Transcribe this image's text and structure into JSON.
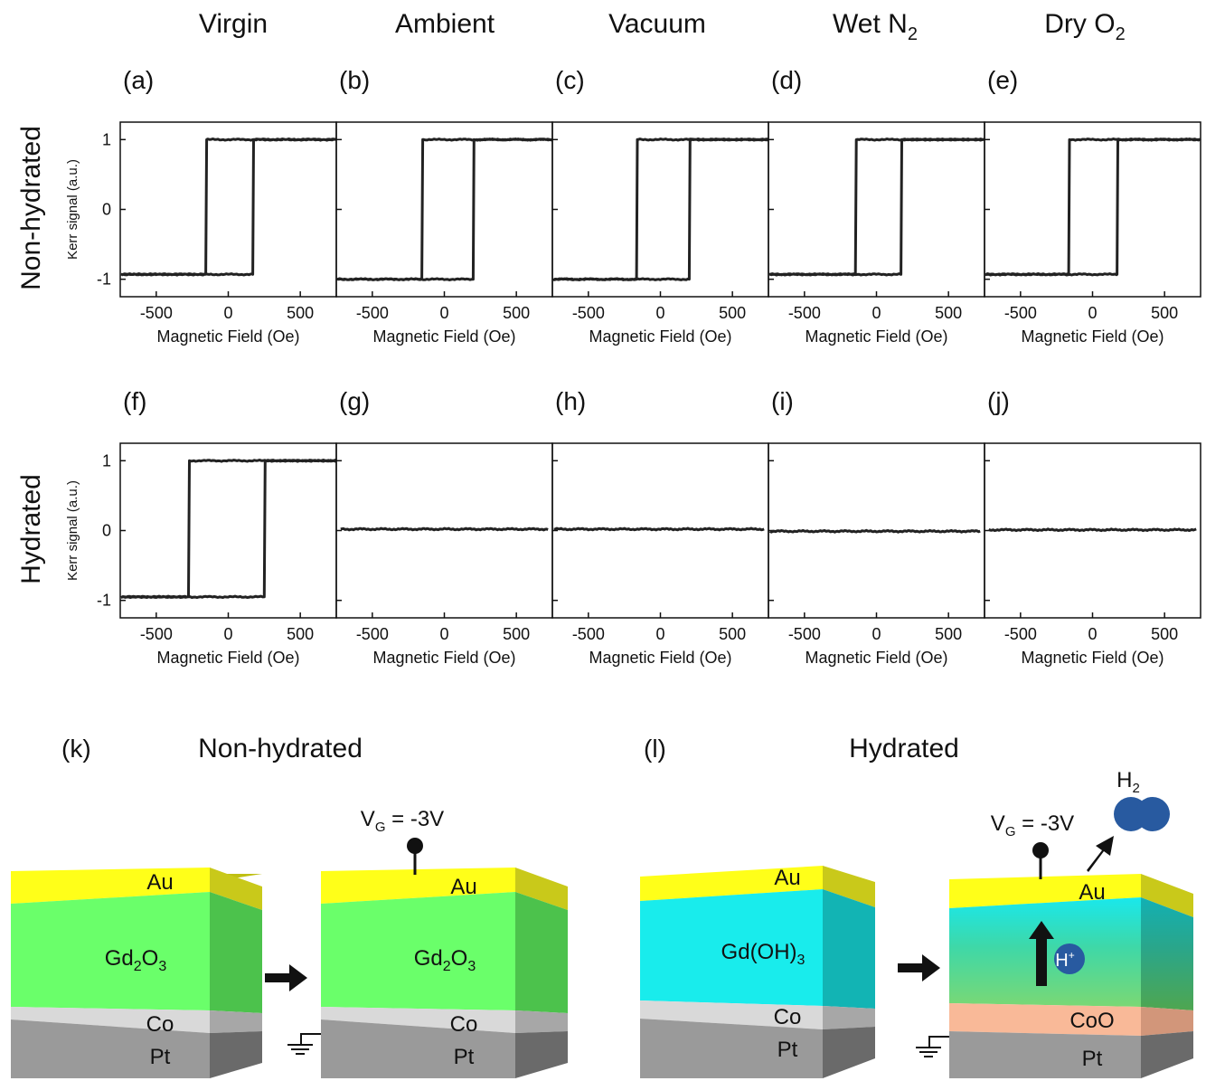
{
  "columns": [
    {
      "title": "Virgin",
      "sub": ""
    },
    {
      "title": "Ambient",
      "sub": ""
    },
    {
      "title": "Vacuum",
      "sub": ""
    },
    {
      "title": "Wet N",
      "sub": "2"
    },
    {
      "title": "Dry O",
      "sub": "2"
    }
  ],
  "rows": [
    {
      "label": "Non-hydrated",
      "panels": [
        "(a)",
        "(b)",
        "(c)",
        "(d)",
        "(e)"
      ]
    },
    {
      "label": "Hydrated",
      "panels": [
        "(f)",
        "(g)",
        "(h)",
        "(i)",
        "(j)"
      ]
    }
  ],
  "axes": {
    "xlabel": "Magnetic Field (Oe)",
    "ylabel": "Kerr signal (a.u.)",
    "xticks": [
      "-500",
      "0",
      "500"
    ],
    "yticks": [
      "1",
      "0",
      "-1"
    ]
  },
  "chart_data": [
    {
      "panel": "(a)",
      "type": "line",
      "xlim": [
        -750,
        750
      ],
      "ylim": [
        -1.25,
        1.25
      ],
      "coercive_field_oe": [
        -150,
        170
      ],
      "saturation": [
        -0.93,
        1.0
      ],
      "xlabel": "Magnetic Field (Oe)",
      "ylabel": "Kerr signal (a.u.)"
    },
    {
      "panel": "(b)",
      "type": "line",
      "xlim": [
        -750,
        750
      ],
      "ylim": [
        -1.25,
        1.25
      ],
      "coercive_field_oe": [
        -150,
        200
      ],
      "saturation": [
        -1.0,
        1.0
      ],
      "xlabel": "Magnetic Field (Oe)"
    },
    {
      "panel": "(c)",
      "type": "line",
      "xlim": [
        -750,
        750
      ],
      "ylim": [
        -1.25,
        1.25
      ],
      "coercive_field_oe": [
        -160,
        200
      ],
      "saturation": [
        -1.0,
        1.0
      ],
      "xlabel": "Magnetic Field (Oe)"
    },
    {
      "panel": "(d)",
      "type": "line",
      "xlim": [
        -750,
        750
      ],
      "ylim": [
        -1.25,
        1.25
      ],
      "coercive_field_oe": [
        -140,
        170
      ],
      "saturation": [
        -0.93,
        1.0
      ],
      "xlabel": "Magnetic Field (Oe)"
    },
    {
      "panel": "(e)",
      "type": "line",
      "xlim": [
        -750,
        750
      ],
      "ylim": [
        -1.25,
        1.25
      ],
      "coercive_field_oe": [
        -160,
        170
      ],
      "saturation": [
        -0.93,
        1.0
      ],
      "xlabel": "Magnetic Field (Oe)"
    },
    {
      "panel": "(f)",
      "type": "line",
      "xlim": [
        -750,
        750
      ],
      "ylim": [
        -1.25,
        1.25
      ],
      "coercive_field_oe": [
        -270,
        250
      ],
      "saturation": [
        -0.95,
        1.0
      ],
      "xlabel": "Magnetic Field (Oe)",
      "ylabel": "Kerr signal (a.u.)"
    },
    {
      "panel": "(g)",
      "type": "line",
      "xlim": [
        -750,
        750
      ],
      "ylim": [
        -1.25,
        1.25
      ],
      "x": [
        -720,
        720
      ],
      "flat_value": 0.02,
      "xlabel": "Magnetic Field (Oe)"
    },
    {
      "panel": "(h)",
      "type": "line",
      "xlim": [
        -750,
        750
      ],
      "ylim": [
        -1.25,
        1.25
      ],
      "x": [
        -740,
        720
      ],
      "flat_value": 0.02,
      "xlabel": "Magnetic Field (Oe)"
    },
    {
      "panel": "(i)",
      "type": "line",
      "xlim": [
        -750,
        750
      ],
      "ylim": [
        -1.25,
        1.25
      ],
      "x": [
        -740,
        720
      ],
      "flat_value": -0.01,
      "xlabel": "Magnetic Field (Oe)"
    },
    {
      "panel": "(j)",
      "type": "line",
      "xlim": [
        -750,
        750
      ],
      "ylim": [
        -1.25,
        1.25
      ],
      "x": [
        -720,
        720
      ],
      "flat_value": 0.01,
      "xlabel": "Magnetic Field (Oe)"
    }
  ],
  "schemes": {
    "k": {
      "letter": "(k)",
      "title": "Non-hydrated"
    },
    "l": {
      "letter": "(l)",
      "title": "Hydrated"
    },
    "layers": {
      "au": "Au",
      "oxide_main": "Gd",
      "oxide_sub": "2",
      "oxide_o": "O",
      "oxide_sub2": "3",
      "hydroxide_main": "Gd(OH)",
      "hydroxide_sub": "3",
      "co": "Co",
      "coo": "CoO",
      "pt": "Pt"
    },
    "gate": {
      "v": "V",
      "sub": "G",
      "rest": " = -3V"
    },
    "hydrogen": {
      "h": "H",
      "sub": "2"
    },
    "proton": {
      "h": "H",
      "sup": "+"
    }
  },
  "colors": {
    "au": "#ffff19",
    "gd2o3": "#6aff6a",
    "gdoh3": "#19ecec",
    "co": "#d9d9d9",
    "coo": "#f9b998",
    "pt": "#9a9a9a",
    "h2": "#285aa0",
    "curve": "#222222"
  }
}
